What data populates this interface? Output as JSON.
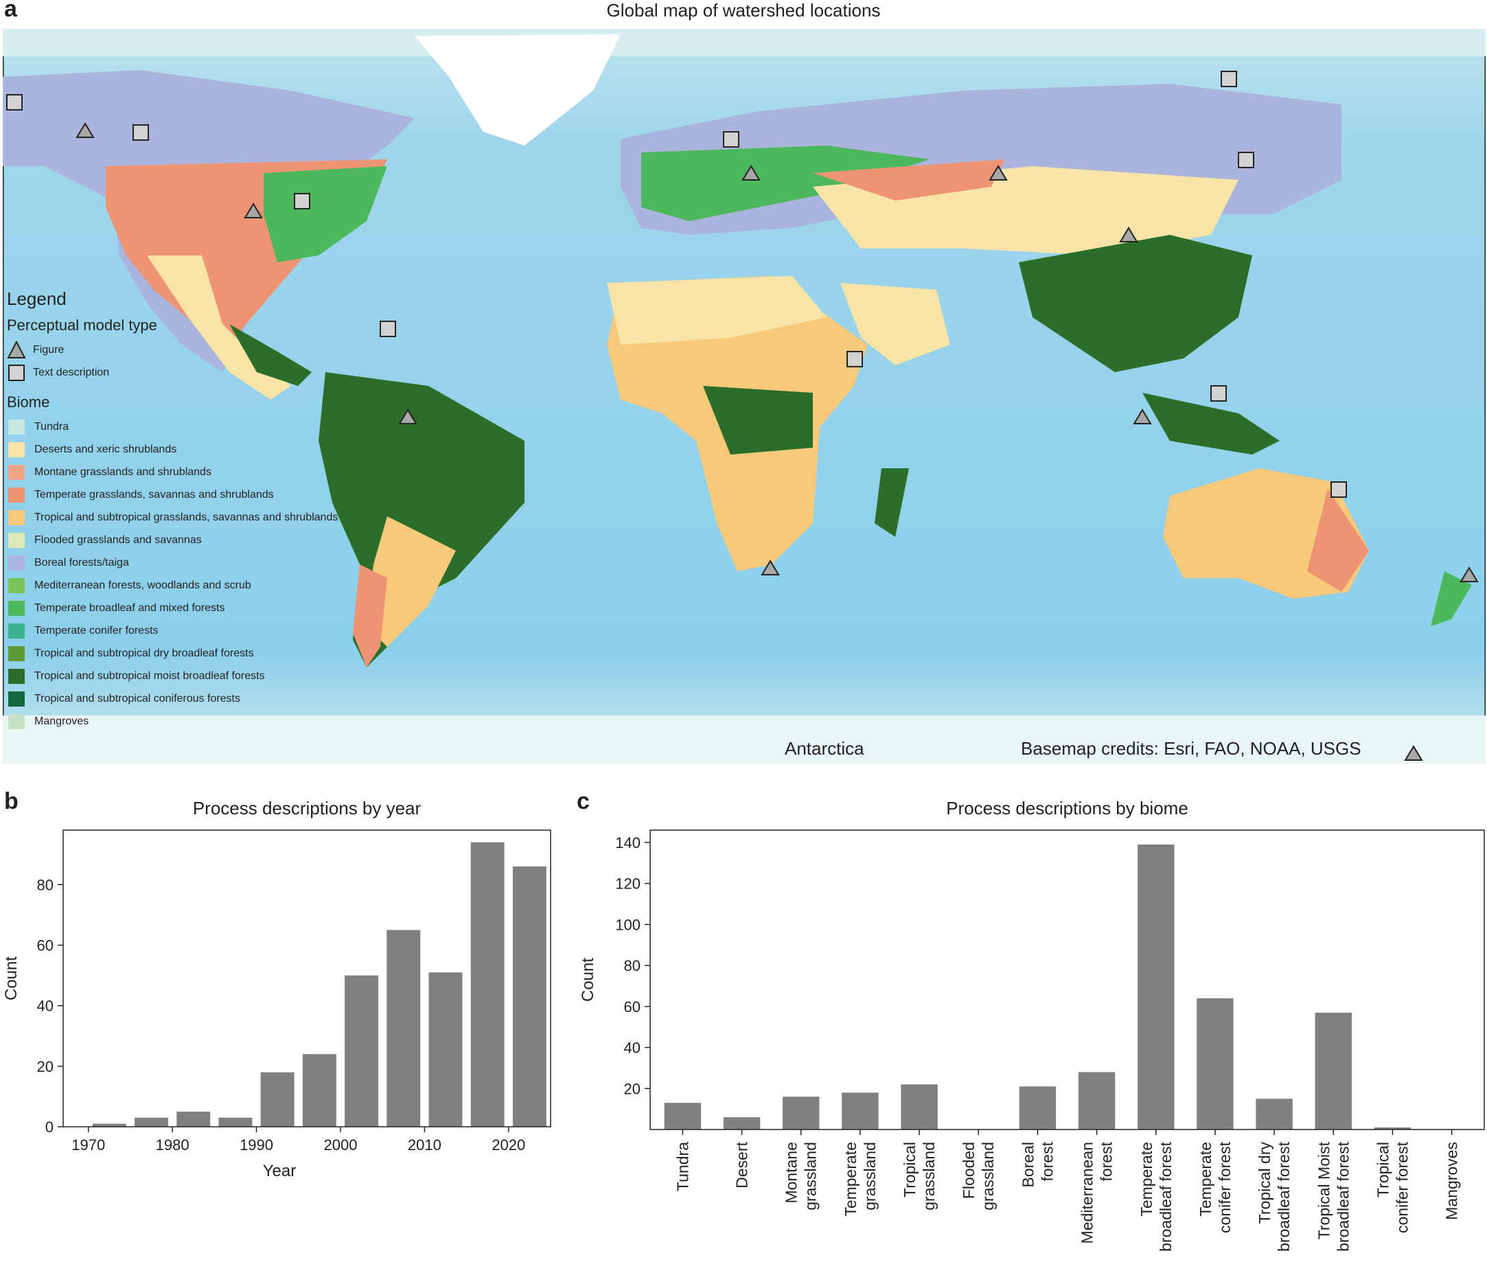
{
  "panel_a": {
    "letter": "a",
    "title": "Global map of watershed locations",
    "antarctica_label": "Antarctica",
    "credits": "Basemap credits: Esri, FAO, NOAA, USGS",
    "legend": {
      "title": "Legend",
      "model_type_heading": "Perceptual model type",
      "model_types": [
        {
          "label": "Figure",
          "marker": "triangle"
        },
        {
          "label": "Text description",
          "marker": "square"
        }
      ],
      "biome_heading": "Biome",
      "biomes": [
        {
          "label": "Tundra",
          "color": "#c9e7e2"
        },
        {
          "label": "Deserts and xeric shrublands",
          "color": "#f7e4a6"
        },
        {
          "label": "Montane grasslands and shrublands",
          "color": "#f2a486"
        },
        {
          "label": "Temperate grasslands, savannas and shrublands",
          "color": "#ef9472"
        },
        {
          "label": "Tropical and subtropical grasslands, savannas and shrublands",
          "color": "#f8c97a"
        },
        {
          "label": "Flooded grasslands and savannas",
          "color": "#dde9b8"
        },
        {
          "label": "Boreal forests/taiga",
          "color": "#aab4dc"
        },
        {
          "label": "Mediterranean forests, woodlands and scrub",
          "color": "#79c35a"
        },
        {
          "label": "Temperate broadleaf and mixed forests",
          "color": "#4cb85c"
        },
        {
          "label": "Temperate conifer forests",
          "color": "#3bb38f"
        },
        {
          "label": "Tropical and subtropical dry broadleaf forests",
          "color": "#5e9a34"
        },
        {
          "label": "Tropical and subtropical moist broadleaf forests",
          "color": "#2a6e29"
        },
        {
          "label": "Tropical and subtropical coniferous forests",
          "color": "#12693f"
        },
        {
          "label": "Mangroves",
          "color": "#c5e3c4"
        }
      ]
    }
  },
  "chart_data": [
    {
      "id": "b",
      "letter": "b",
      "type": "bar",
      "title": "Process descriptions by year",
      "xlabel": "Year",
      "ylabel": "Count",
      "x": [
        1972.5,
        1977.5,
        1982.5,
        1987.5,
        1992.5,
        1997.5,
        2002.5,
        2007.5,
        2012.5,
        2017.5,
        2022.5
      ],
      "values": [
        1,
        3,
        5,
        3,
        18,
        24,
        50,
        65,
        51,
        94,
        86
      ],
      "xlim": [
        1967,
        2025
      ],
      "ylim": [
        0,
        98
      ],
      "xticks": [
        1970,
        1980,
        1990,
        2000,
        2010,
        2020
      ],
      "yticks": [
        0,
        20,
        40,
        60,
        80
      ],
      "bar_color": "#808080",
      "grid": false
    },
    {
      "id": "c",
      "letter": "c",
      "type": "bar",
      "title": "Process descriptions by biome",
      "xlabel": "",
      "ylabel": "Count",
      "categories": [
        [
          "Tundra"
        ],
        [
          "Desert"
        ],
        [
          "Montane",
          "grassland"
        ],
        [
          "Temperate",
          "grassland"
        ],
        [
          "Tropical",
          "grassland"
        ],
        [
          "Flooded",
          "grassland"
        ],
        [
          "Boreal",
          "forest"
        ],
        [
          "Mediterranean",
          "forest"
        ],
        [
          "Temperate",
          "broadleaf forest"
        ],
        [
          "Temperate",
          "conifer forest"
        ],
        [
          "Tropical dry",
          "broadleaf forest"
        ],
        [
          "Tropical Moist",
          "broadleaf forest"
        ],
        [
          "Tropical",
          "conifer forest"
        ],
        [
          "Mangroves"
        ]
      ],
      "values": [
        13,
        6,
        16,
        18,
        22,
        0,
        21,
        28,
        139,
        64,
        15,
        57,
        1,
        0
      ],
      "ylim": [
        0,
        146
      ],
      "yticks": [
        20,
        40,
        60,
        80,
        100,
        120,
        140
      ],
      "bar_color": "#808080",
      "grid": false
    }
  ]
}
